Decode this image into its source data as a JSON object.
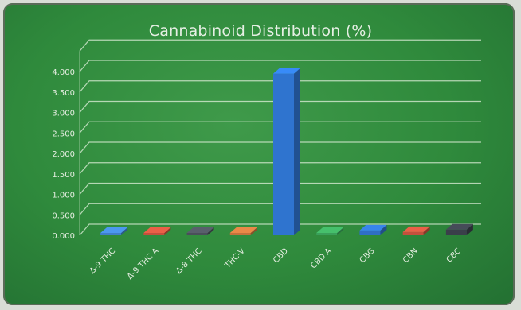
{
  "chart_data": {
    "type": "bar",
    "title": "Cannabinoid Distribution (%)",
    "categories": [
      "Δ-9 THC",
      "Δ-9 THC A",
      "Δ-8 THC",
      "THC-V",
      "CBD",
      "CBD A",
      "CBG",
      "CBN",
      "CBC"
    ],
    "values": [
      0.02,
      0.02,
      0.01,
      0.02,
      3.95,
      0.02,
      0.12,
      0.08,
      0.14
    ],
    "colors": [
      "#3f7fc8",
      "#c4503c",
      "#4a4f5a",
      "#c4723c",
      "#2f74cf",
      "#3aa05a",
      "#2f6fc4",
      "#c4503c",
      "#3a3f4a"
    ],
    "y_ticks": [
      "0.000",
      "0.500",
      "1.000",
      "1.500",
      "2.000",
      "2.500",
      "3.000",
      "3.500",
      "4.000"
    ],
    "ylim": [
      0,
      4.5
    ],
    "xlabel": "",
    "ylabel": "",
    "grid": true,
    "legend": "none"
  }
}
